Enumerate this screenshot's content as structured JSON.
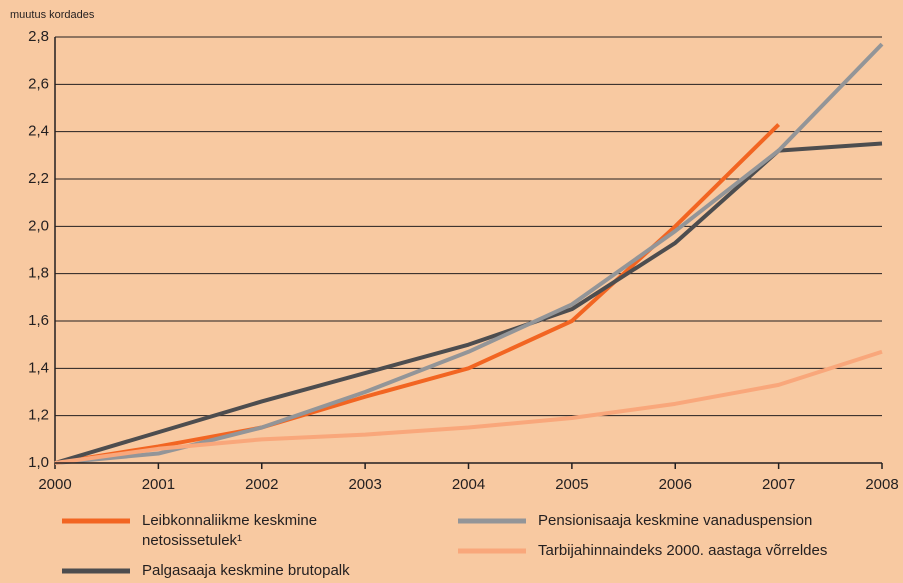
{
  "chart_data": {
    "type": "line",
    "ylabel": "muutus kordades",
    "x": [
      2000,
      2001,
      2002,
      2003,
      2004,
      2005,
      2006,
      2007,
      2008
    ],
    "xlim": [
      2000,
      2008
    ],
    "xticks": [
      2000,
      2001,
      2002,
      2003,
      2004,
      2005,
      2006,
      2007,
      2008
    ],
    "ylim": [
      1.0,
      2.8
    ],
    "yticks": [
      {
        "value": 1.0,
        "label": "1,0"
      },
      {
        "value": 1.2,
        "label": "1,2"
      },
      {
        "value": 1.4,
        "label": "1,4"
      },
      {
        "value": 1.6,
        "label": "1,6"
      },
      {
        "value": 1.8,
        "label": "1,8"
      },
      {
        "value": 2.0,
        "label": "2,0"
      },
      {
        "value": 2.2,
        "label": "2,2"
      },
      {
        "value": 2.4,
        "label": "2,4"
      },
      {
        "value": 2.6,
        "label": "2,6"
      },
      {
        "value": 2.8,
        "label": "2,8"
      }
    ],
    "grid": true,
    "series": [
      {
        "name": "Leibkonnaliikme keskmine netosissetulek¹",
        "color": "#f26522",
        "values": [
          1.0,
          1.07,
          1.15,
          1.28,
          1.4,
          1.6,
          2.0,
          2.43,
          null
        ]
      },
      {
        "name": "Palgasaaja keskmine brutopalk",
        "color": "#4d4d4f",
        "values": [
          1.0,
          1.13,
          1.26,
          1.38,
          1.5,
          1.65,
          1.93,
          2.32,
          2.35
        ]
      },
      {
        "name": "Pensionisaaja keskmine vanaduspension",
        "color": "#939598",
        "values": [
          1.0,
          1.04,
          1.15,
          1.3,
          1.47,
          1.67,
          1.98,
          2.32,
          2.77
        ]
      },
      {
        "name": "Tarbijahinnaindeks 2000. aastaga võrreldes",
        "color": "#f9a77b",
        "values": [
          1.0,
          1.06,
          1.1,
          1.12,
          1.15,
          1.19,
          1.25,
          1.33,
          1.47
        ]
      }
    ]
  }
}
